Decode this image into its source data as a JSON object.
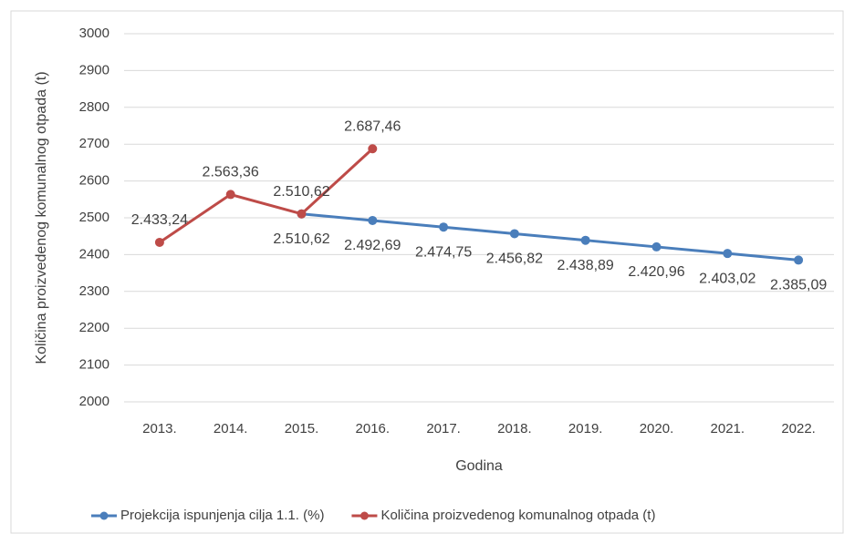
{
  "chart_data": {
    "type": "line",
    "y_axis_label": "Količina proizvedenog komunalnog otpada (t)",
    "x_axis_label": "Godina",
    "categories": [
      "2013.",
      "2014.",
      "2015.",
      "2016.",
      "2017.",
      "2018.",
      "2019.",
      "2020.",
      "2021.",
      "2022."
    ],
    "series": [
      {
        "name": "Projekcija ispunjenja cilja 1.1. (%)",
        "color": "#4a7ebb",
        "values": [
          null,
          null,
          2510.62,
          2492.69,
          2474.75,
          2456.82,
          2438.89,
          2420.96,
          2403.02,
          2385.09
        ],
        "value_labels": [
          null,
          null,
          "2.510,62",
          "2.492,69",
          "2.474,75",
          "2.456,82",
          "2.438,89",
          "2.420,96",
          "2.403,02",
          "2.385,09"
        ]
      },
      {
        "name": "Količina proizvedenog komunalnog otpada (t)",
        "color": "#be4b48",
        "values": [
          2433.24,
          2563.36,
          2510.62,
          2687.46,
          null,
          null,
          null,
          null,
          null,
          null
        ],
        "value_labels": [
          "2.433,24",
          "2.563,36",
          "2.510,62",
          "2.687,46",
          null,
          null,
          null,
          null,
          null,
          null
        ]
      }
    ],
    "ylim": [
      2000,
      3000
    ],
    "yticks": [
      2000,
      2100,
      2200,
      2300,
      2400,
      2500,
      2600,
      2700,
      2800,
      2900,
      3000
    ],
    "grid": true,
    "legend": "bottom"
  }
}
